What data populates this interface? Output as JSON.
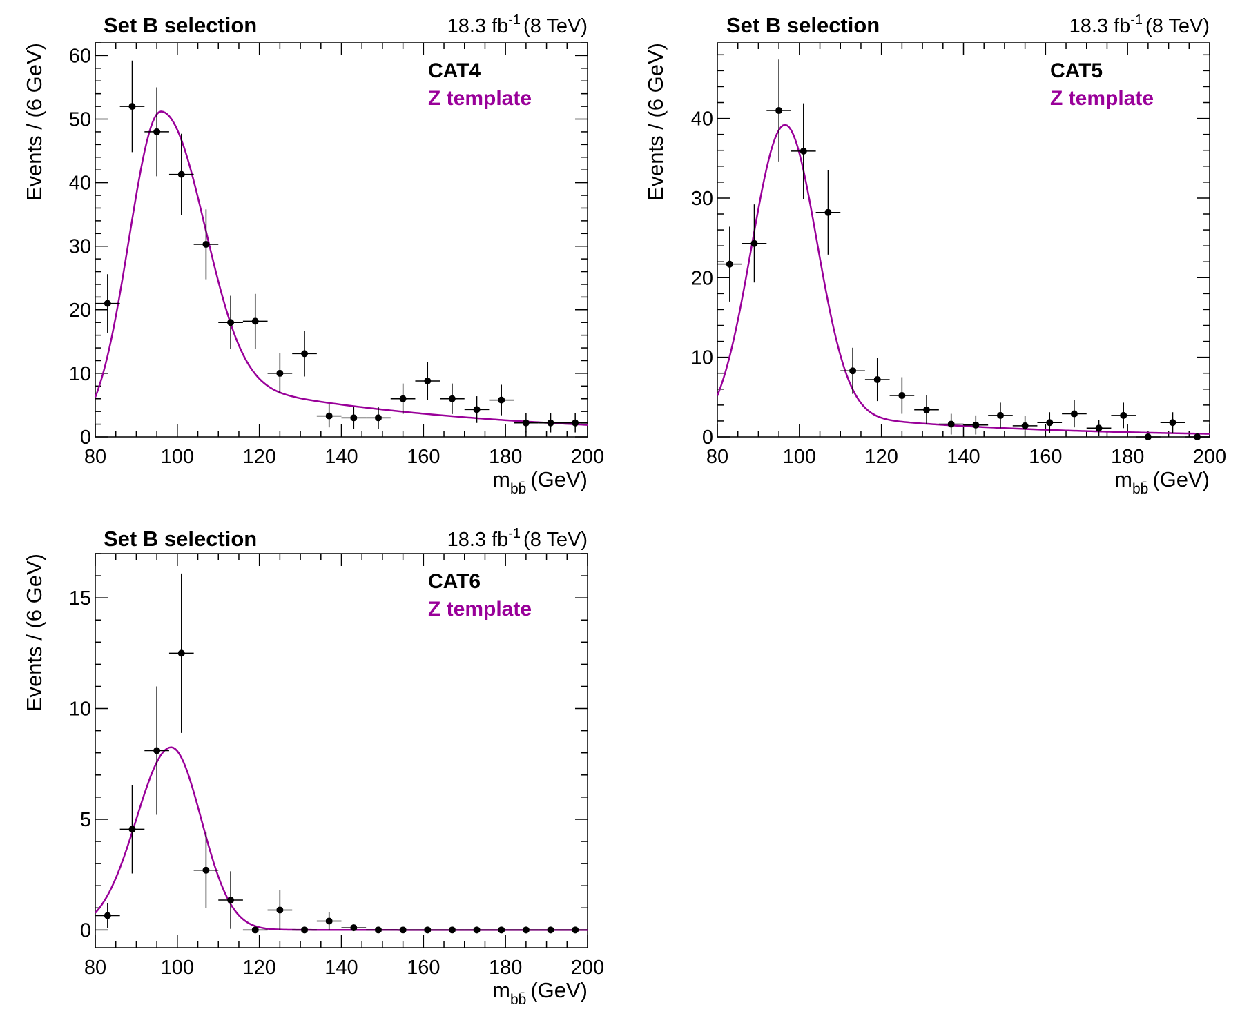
{
  "chart_data": [
    {
      "type": "scatter",
      "header_left": "Set B selection",
      "lumi": "18.3 fb",
      "lumi_sup": "-1",
      "energy": "(8 TeV)",
      "category": "CAT4",
      "model_label": "Z template",
      "xlabel_main": "m",
      "xlabel_sub": "bb̄",
      "xlabel_unit": "(GeV)",
      "ylabel": "Events / (6 GeV)",
      "xlim": [
        80,
        200
      ],
      "ylim": [
        0,
        62
      ],
      "xticks": [
        80,
        100,
        120,
        140,
        160,
        180,
        200
      ],
      "yticks": [
        0,
        10,
        20,
        30,
        40,
        50,
        60
      ],
      "x": [
        83,
        89,
        95,
        101,
        107,
        113,
        119,
        125,
        131,
        137,
        143,
        149,
        155,
        161,
        167,
        173,
        179,
        185,
        191,
        197
      ],
      "y": [
        21,
        52,
        48,
        41.3,
        30.3,
        18,
        18.2,
        10,
        13.1,
        3.3,
        3,
        3,
        6,
        8.8,
        6,
        4.3,
        5.8,
        2.2,
        2.2,
        2.2
      ],
      "yerr": [
        4.6,
        7.2,
        7,
        6.4,
        5.5,
        4.2,
        4.3,
        3.2,
        3.6,
        1.8,
        1.7,
        1.7,
        2.4,
        3,
        2.4,
        2.1,
        2.4,
        1.5,
        1.5,
        1.5
      ],
      "xerr": 3,
      "model": {
        "peak": 51.2,
        "mu": 96,
        "sigma_left": 7.8,
        "sigma_right": 9.5,
        "tail_amp": 10.5,
        "tail_slope": 0.0165
      },
      "colors": {
        "data": "#000000",
        "model": "#990099"
      }
    },
    {
      "type": "scatter",
      "header_left": "Set B selection",
      "lumi": "18.3 fb",
      "lumi_sup": "-1",
      "energy": "(8 TeV)",
      "category": "CAT5",
      "model_label": "Z template",
      "xlabel_main": "m",
      "xlabel_sub": "bb̄",
      "xlabel_unit": "(GeV)",
      "ylabel": "Events / (6 GeV)",
      "xlim": [
        80,
        200
      ],
      "ylim": [
        0,
        49.5
      ],
      "xticks": [
        80,
        100,
        120,
        140,
        160,
        180,
        200
      ],
      "yticks": [
        0,
        10,
        20,
        30,
        40
      ],
      "x": [
        83,
        89,
        95,
        101,
        107,
        113,
        119,
        125,
        131,
        137,
        143,
        149,
        155,
        161,
        167,
        173,
        179,
        185,
        191,
        197
      ],
      "y": [
        21.7,
        24.3,
        41,
        35.9,
        28.2,
        8.3,
        7.2,
        5.2,
        3.4,
        1.6,
        1.5,
        2.7,
        1.4,
        1.8,
        2.9,
        1.1,
        2.7,
        0,
        1.8,
        0
      ],
      "yerr": [
        4.7,
        4.9,
        6.4,
        6,
        5.3,
        2.9,
        2.7,
        2.3,
        1.8,
        1.3,
        1.2,
        1.6,
        1.2,
        1.3,
        1.7,
        1,
        1.6,
        0,
        1.3,
        0
      ],
      "xerr": 3,
      "model": {
        "peak": 39.2,
        "mu": 96.5,
        "sigma_left": 8.2,
        "sigma_right": 7.6,
        "tail_amp": 3.4,
        "tail_slope": 0.021
      },
      "colors": {
        "data": "#000000",
        "model": "#990099"
      }
    },
    {
      "type": "scatter",
      "header_left": "Set B selection",
      "lumi": "18.3 fb",
      "lumi_sup": "-1",
      "energy": "(8 TeV)",
      "category": "CAT6",
      "model_label": "Z template",
      "xlabel_main": "m",
      "xlabel_sub": "bb̄",
      "xlabel_unit": "(GeV)",
      "ylabel": "Events / (6 GeV)",
      "xlim": [
        80,
        200
      ],
      "ylim": [
        -0.8,
        17
      ],
      "xticks": [
        80,
        100,
        120,
        140,
        160,
        180,
        200
      ],
      "yticks": [
        0,
        5,
        10,
        15
      ],
      "x": [
        83,
        89,
        95,
        101,
        107,
        113,
        119,
        125,
        131,
        137,
        143,
        149,
        155,
        161,
        167,
        173,
        179,
        185,
        191,
        197
      ],
      "y": [
        0.65,
        4.55,
        8.1,
        12.5,
        2.7,
        1.35,
        0,
        0.9,
        0,
        0.4,
        0.1,
        0,
        0,
        0,
        0,
        0,
        0,
        0,
        0,
        0
      ],
      "yerr": [
        0.55,
        2,
        2.9,
        3.6,
        1.7,
        1.3,
        0,
        0.9,
        0,
        0.4,
        0.08,
        0,
        0,
        0,
        0,
        0,
        0,
        0,
        0,
        0
      ],
      "xerr": 3,
      "model": {
        "peak": 8.25,
        "mu": 98.5,
        "sigma_left": 8.5,
        "sigma_right": 7.3,
        "tail_amp": 0.1,
        "tail_slope": 0.09
      },
      "colors": {
        "data": "#000000",
        "model": "#990099"
      }
    }
  ]
}
